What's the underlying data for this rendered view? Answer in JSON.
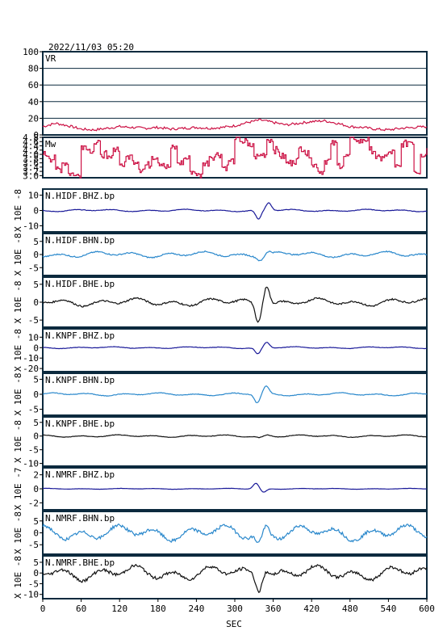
{
  "header": {
    "timestamp": "2022/11/03 05:20"
  },
  "colors": {
    "vr": "#cc1144",
    "mw": "#cc1144",
    "dark_blue": "#1a1a99",
    "light_blue": "#2a88cc",
    "black": "#111111"
  },
  "chart_data": {
    "type": "line",
    "xlabel": "SEC",
    "xlim": [
      0,
      600
    ],
    "xticks": [
      0,
      60,
      120,
      180,
      240,
      300,
      360,
      420,
      480,
      540,
      600
    ],
    "panels": [
      {
        "name": "VR",
        "ylim": [
          0,
          100
        ],
        "yticks": [
          "0",
          "20",
          "40",
          "60",
          "80",
          "100"
        ],
        "ytick_values": [
          0,
          20,
          40,
          60,
          80,
          100
        ],
        "color": "#cc1144",
        "grid": true,
        "series": {
          "x": [
            0,
            20,
            40,
            60,
            80,
            100,
            120,
            140,
            160,
            180,
            200,
            220,
            240,
            260,
            280,
            300,
            320,
            340,
            360,
            380,
            400,
            420,
            440,
            460,
            480,
            500,
            520,
            540,
            560,
            580,
            600
          ],
          "y": [
            10,
            14,
            11,
            7,
            6,
            8,
            10,
            9,
            8,
            9,
            7,
            8,
            9,
            8,
            9,
            11,
            15,
            18,
            15,
            12,
            14,
            16,
            17,
            14,
            10,
            9,
            7,
            6,
            8,
            9,
            10
          ]
        }
      },
      {
        "name": "Mw",
        "ylim": [
          2.9,
          4.8
        ],
        "yticks": [
          "3.0",
          "3.2",
          "3.4",
          "3.6",
          "3.8",
          "4.0",
          "4.2",
          "4.4",
          "4.6",
          "4.8"
        ],
        "ytick_values": [
          3.0,
          3.2,
          3.4,
          3.6,
          3.8,
          4.0,
          4.2,
          4.4,
          4.6,
          4.8
        ],
        "color": "#cc1144",
        "grid": false,
        "series": {
          "x": [
            0,
            10,
            20,
            30,
            40,
            50,
            60,
            70,
            80,
            90,
            100,
            110,
            120,
            130,
            140,
            150,
            160,
            170,
            180,
            190,
            200,
            210,
            220,
            230,
            240,
            250,
            260,
            270,
            280,
            290,
            300,
            310,
            320,
            330,
            340,
            350,
            360,
            370,
            380,
            390,
            400,
            410,
            420,
            430,
            440,
            450,
            460,
            470,
            480,
            490,
            500,
            510,
            520,
            530,
            540,
            550,
            560,
            570,
            580,
            590,
            600
          ],
          "y": [
            4.0,
            3.8,
            3.3,
            3.6,
            3.1,
            3.0,
            4.4,
            4.2,
            4.5,
            4.0,
            3.8,
            4.3,
            3.5,
            3.9,
            3.7,
            3.3,
            3.5,
            3.9,
            3.6,
            3.4,
            4.3,
            3.6,
            3.8,
            3.2,
            3.0,
            3.6,
            3.9,
            4.0,
            3.4,
            3.7,
            4.7,
            4.6,
            4.4,
            3.9,
            4.0,
            4.7,
            4.2,
            3.9,
            3.6,
            3.7,
            4.3,
            4.0,
            3.5,
            3.2,
            3.7,
            4.5,
            3.5,
            3.9,
            4.8,
            4.6,
            4.7,
            4.2,
            3.8,
            3.9,
            4.1,
            3.4,
            4.5,
            4.6,
            3.2,
            4.0,
            4.3
          ]
        }
      },
      {
        "name": "N.HIDF.BHZ.bp",
        "yticks": [
          "10",
          "0",
          "-10"
        ],
        "ytick_values": [
          10,
          0,
          -10
        ],
        "ylim": [
          -14,
          14
        ],
        "ylabel": "X 10E -8",
        "color": "#1a1a99",
        "noise": 0.6,
        "pulse": [
          [
            337,
            -6
          ],
          [
            353,
            5
          ]
        ]
      },
      {
        "name": "N.HIDF.BHN.bp",
        "yticks": [
          "5",
          "0",
          "-5"
        ],
        "ytick_values": [
          5,
          0,
          -5
        ],
        "ylim": [
          -8,
          8
        ],
        "ylabel": "X 10E -8",
        "color": "#2a88cc",
        "noise": 0.9,
        "pulse": [
          [
            340,
            -1.5
          ],
          [
            352,
            1.2
          ]
        ]
      },
      {
        "name": "N.HIDF.BHE.bp",
        "yticks": [
          "5",
          "0",
          "-5"
        ],
        "ytick_values": [
          5,
          0,
          -5
        ],
        "ylim": [
          -7,
          7
        ],
        "ylabel": "X 10E -8",
        "color": "#111111",
        "noise": 0.9,
        "pulse": [
          [
            336,
            -5
          ],
          [
            350,
            5.5
          ]
        ]
      },
      {
        "name": "N.KNPF.BHZ.bp",
        "yticks": [
          "10",
          "0",
          "-10",
          "-20"
        ],
        "ytick_values": [
          10,
          0,
          -10,
          -20
        ],
        "ylim": [
          -23,
          18
        ],
        "ylabel": "X 10E -8",
        "color": "#1a1a99",
        "noise": 0.7,
        "pulse": [
          [
            336,
            -6
          ],
          [
            350,
            5
          ]
        ]
      },
      {
        "name": "N.KNPF.BHN.bp",
        "yticks": [
          "5",
          "0",
          "-5"
        ],
        "ytick_values": [
          5,
          0,
          -5
        ],
        "ylim": [
          -7,
          7
        ],
        "ylabel": "X 10E -8",
        "color": "#2a88cc",
        "noise": 0.4,
        "pulse": [
          [
            335,
            -3
          ],
          [
            349,
            2.5
          ]
        ]
      },
      {
        "name": "N.KNPF.BHE.bp",
        "yticks": [
          "5",
          "0",
          "-5",
          "-10"
        ],
        "ytick_values": [
          5,
          0,
          -5,
          -10
        ],
        "ylim": [
          -11,
          7
        ],
        "ylabel": "X 10E -8",
        "color": "#111111",
        "noise": 0.35,
        "pulse": [
          [
            338,
            -0.5
          ],
          [
            352,
            0.5
          ]
        ]
      },
      {
        "name": "N.NMRF.BHZ.bp",
        "yticks": [
          "2",
          "0",
          "-2"
        ],
        "ytick_values": [
          2,
          0,
          -2
        ],
        "ylim": [
          -3,
          3
        ],
        "ylabel": "X 10E -7",
        "color": "#1a1a99",
        "noise": 0.05,
        "pulse": [
          [
            333,
            0.8
          ],
          [
            345,
            -0.5
          ]
        ]
      },
      {
        "name": "N.NMRF.BHN.bp",
        "yticks": [
          "5",
          "0",
          "-5"
        ],
        "ytick_values": [
          5,
          0,
          -5
        ],
        "ylim": [
          -9,
          9
        ],
        "ylabel": "X 10E -8",
        "color": "#2a88cc",
        "noise": 2.6,
        "pulse": [
          [
            337,
            -4
          ],
          [
            350,
            3
          ]
        ]
      },
      {
        "name": "N.NMRF.BHE.bp",
        "yticks": [
          "5",
          "0",
          "-5",
          "-10"
        ],
        "ytick_values": [
          5,
          0,
          -5,
          -10
        ],
        "ylim": [
          -12,
          8
        ],
        "ylabel": "X 10E -8",
        "color": "#111111",
        "noise": 2.8,
        "pulse": [
          [
            337,
            -6
          ],
          [
            350,
            4
          ]
        ]
      }
    ]
  }
}
